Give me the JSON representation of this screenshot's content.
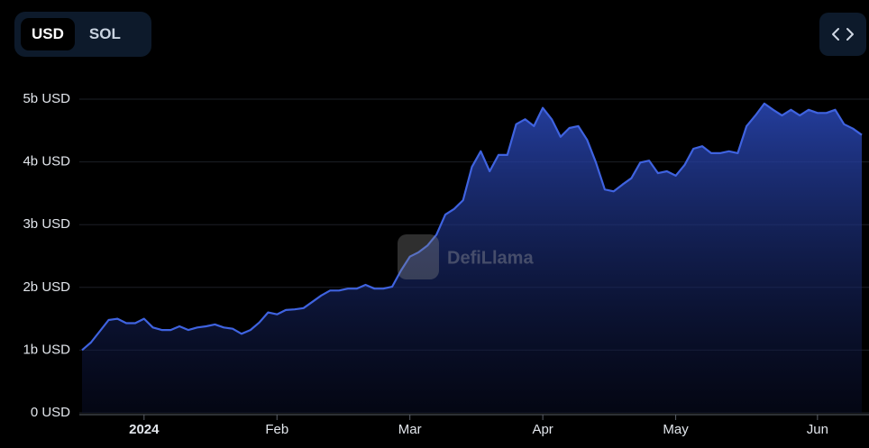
{
  "toggle_options": [
    "USD",
    "SOL"
  ],
  "chart_data": {
    "type": "area",
    "watermark": "DefiLlama",
    "categories": [
      null,
      null,
      null,
      null,
      null,
      null,
      null,
      "2024",
      null,
      null,
      null,
      null,
      null,
      null,
      null,
      null,
      null,
      null,
      null,
      null,
      null,
      null,
      "Feb",
      null,
      null,
      null,
      null,
      null,
      null,
      null,
      null,
      null,
      null,
      null,
      null,
      null,
      null,
      "Mar",
      null,
      null,
      null,
      null,
      null,
      null,
      null,
      null,
      null,
      null,
      null,
      null,
      null,
      null,
      "Apr",
      null,
      null,
      null,
      null,
      null,
      null,
      null,
      null,
      null,
      null,
      null,
      null,
      null,
      null,
      "May",
      null,
      null,
      null,
      null,
      null,
      null,
      null,
      null,
      null,
      null,
      null,
      null,
      null,
      null,
      null,
      "Jun",
      null,
      null,
      null,
      null,
      null
    ],
    "values": [
      1.0,
      1.12,
      1.3,
      1.48,
      1.5,
      1.43,
      1.43,
      1.5,
      1.36,
      1.32,
      1.32,
      1.38,
      1.32,
      1.36,
      1.38,
      1.41,
      1.36,
      1.34,
      1.26,
      1.32,
      1.44,
      1.6,
      1.57,
      1.64,
      1.65,
      1.67,
      1.77,
      1.87,
      1.95,
      1.95,
      1.98,
      1.98,
      2.04,
      1.98,
      1.98,
      2.01,
      2.27,
      2.49,
      2.56,
      2.67,
      2.84,
      3.16,
      3.25,
      3.39,
      3.92,
      4.17,
      3.85,
      4.11,
      4.11,
      4.6,
      4.68,
      4.57,
      4.86,
      4.68,
      4.4,
      4.54,
      4.57,
      4.35,
      3.99,
      3.56,
      3.53,
      3.64,
      3.74,
      3.99,
      4.02,
      3.82,
      3.85,
      3.78,
      3.95,
      4.21,
      4.25,
      4.14,
      4.14,
      4.17,
      4.14,
      4.57,
      4.74,
      4.93,
      4.83,
      4.74,
      4.83,
      4.74,
      4.83,
      4.78,
      4.78,
      4.83,
      4.6,
      4.53,
      4.43
    ],
    "color": "#3f63e0",
    "ylim": [
      0,
      5
    ],
    "yticks": [
      {
        "value": 0,
        "label": "0 USD"
      },
      {
        "value": 1,
        "label": "1b USD"
      },
      {
        "value": 2,
        "label": "2b USD"
      },
      {
        "value": 3,
        "label": "3b USD"
      },
      {
        "value": 4,
        "label": "4b USD"
      },
      {
        "value": 5,
        "label": "5b USD"
      }
    ],
    "grid": true
  }
}
